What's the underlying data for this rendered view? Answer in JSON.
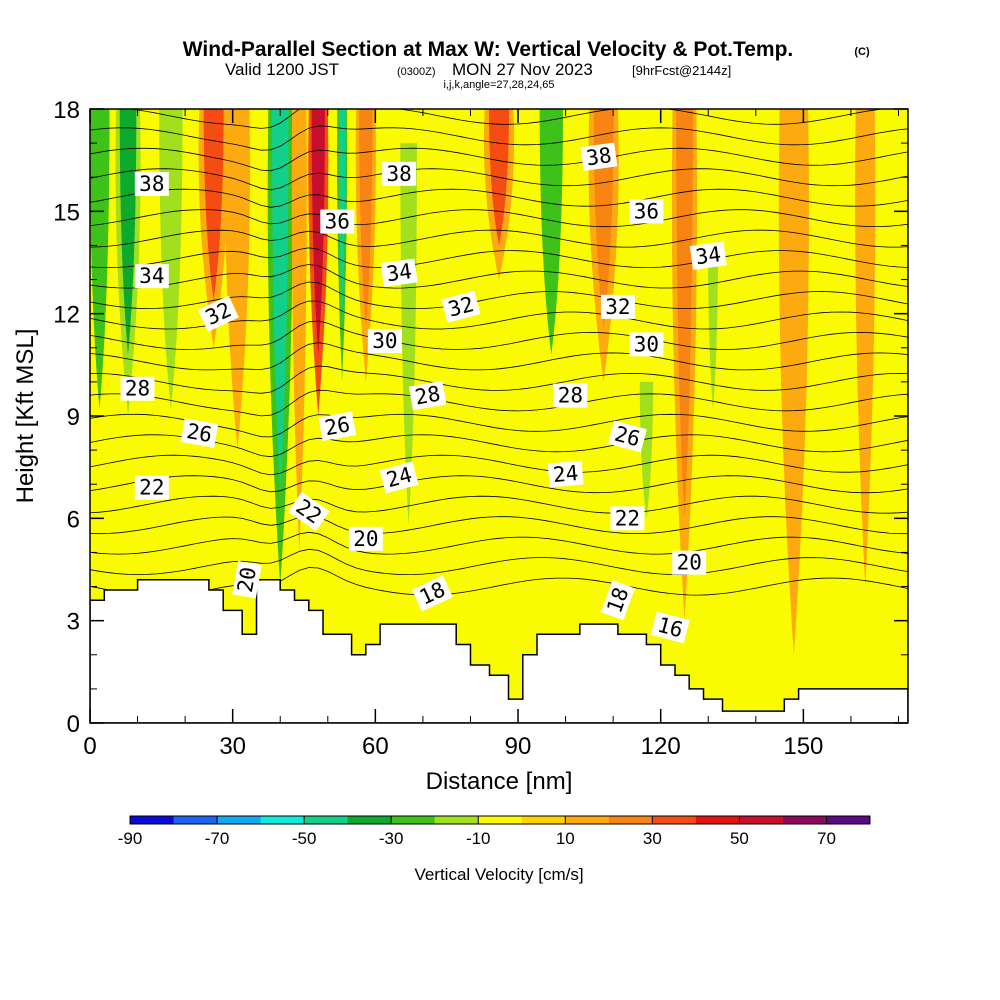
{
  "chart_data": {
    "type": "heatmap",
    "title_main": "Wind-Parallel Section at Max W: Vertical Velocity & Pot.Temp.",
    "title_tag": "(C)",
    "subtitle_a": "Valid 1200 JST",
    "subtitle_b": "(0300Z)",
    "subtitle_c": "MON 27 Nov 2023",
    "subtitle_d": "[9hrFcst@2144z]",
    "subtitle2": "i,j,k,angle=27,28,24,65",
    "xlabel": "Distance [nm]",
    "ylabel": "Height [Kft MSL]",
    "xlim": [
      0,
      172
    ],
    "ylim": [
      0,
      18
    ],
    "x_ticks": [
      0,
      30,
      60,
      90,
      120,
      150
    ],
    "y_ticks": [
      0,
      3,
      6,
      9,
      12,
      15,
      18
    ],
    "colorbar": {
      "title": "Vertical Velocity [cm/s]",
      "levels": [
        -90,
        -80,
        -70,
        -60,
        -50,
        -40,
        -30,
        -20,
        -10,
        0,
        10,
        20,
        30,
        40,
        50,
        60,
        70,
        80
      ],
      "tick_labels": [
        "-90",
        "-70",
        "-50",
        "-30",
        "-10",
        "10",
        "30",
        "50",
        "70"
      ],
      "colors": [
        "#0a0ad6",
        "#1e64f0",
        "#12a8ee",
        "#10ecdc",
        "#12d08a",
        "#0eaa2e",
        "#3ec21a",
        "#a2e01e",
        "#fafa00",
        "#fcd200",
        "#fcaa10",
        "#f88414",
        "#f44c12",
        "#e41212",
        "#c8102e",
        "#8c0a5a",
        "#5a0a82"
      ]
    },
    "vertical_velocity_bands": [
      {
        "x": 2,
        "w": 6,
        "ztop": 18,
        "zbot": 7,
        "v": -30
      },
      {
        "x": 8,
        "w": 5,
        "ztop": 18,
        "zbot": 9,
        "v": -40
      },
      {
        "x": 17,
        "w": 7,
        "ztop": 18,
        "zbot": 7,
        "v": -20
      },
      {
        "x": 26,
        "w": 6,
        "ztop": 18,
        "zbot": 11,
        "v": 30
      },
      {
        "x": 31,
        "w": 5,
        "ztop": 18,
        "zbot": 8,
        "v": 10
      },
      {
        "x": 40,
        "w": 5,
        "ztop": 18,
        "zbot": 4,
        "v": -50
      },
      {
        "x": 44,
        "w": 3,
        "ztop": 18,
        "zbot": 5,
        "v": 10
      },
      {
        "x": 48,
        "w": 4,
        "ztop": 18,
        "zbot": 9,
        "v": 55
      },
      {
        "x": 53,
        "w": 2,
        "ztop": 18,
        "zbot": 10,
        "v": -45
      },
      {
        "x": 58,
        "w": 4,
        "ztop": 18,
        "zbot": 10,
        "v": 20
      },
      {
        "x": 67,
        "w": 5,
        "ztop": 17,
        "zbot": 3,
        "v": -20
      },
      {
        "x": 86,
        "w": 6,
        "ztop": 18,
        "zbot": 13,
        "v": 30
      },
      {
        "x": 97,
        "w": 7,
        "ztop": 18,
        "zbot": 9,
        "v": -30
      },
      {
        "x": 108,
        "w": 6,
        "ztop": 18,
        "zbot": 10,
        "v": 20
      },
      {
        "x": 117,
        "w": 4,
        "ztop": 10,
        "zbot": 5,
        "v": -20
      },
      {
        "x": 125,
        "w": 5,
        "ztop": 18,
        "zbot": 3,
        "v": 20
      },
      {
        "x": 131,
        "w": 3,
        "ztop": 14,
        "zbot": 8,
        "v": -20
      },
      {
        "x": 148,
        "w": 6,
        "ztop": 18,
        "zbot": 2,
        "v": 10
      },
      {
        "x": 163,
        "w": 4,
        "ztop": 18,
        "zbot": 4,
        "v": 10
      }
    ],
    "theta_labels": [
      {
        "text": "38",
        "x": 13,
        "z": 15.8,
        "rot": 0
      },
      {
        "text": "38",
        "x": 65,
        "z": 16.1,
        "rot": 0
      },
      {
        "text": "38",
        "x": 107,
        "z": 16.6,
        "rot": -8
      },
      {
        "text": "36",
        "x": 52,
        "z": 14.7,
        "rot": 0
      },
      {
        "text": "36",
        "x": 117,
        "z": 15.0,
        "rot": 0
      },
      {
        "text": "34",
        "x": 13,
        "z": 13.1,
        "rot": 0
      },
      {
        "text": "34",
        "x": 65,
        "z": 13.2,
        "rot": -8
      },
      {
        "text": "34",
        "x": 130,
        "z": 13.7,
        "rot": -8
      },
      {
        "text": "32",
        "x": 27,
        "z": 12.0,
        "rot": -25
      },
      {
        "text": "32",
        "x": 78,
        "z": 12.2,
        "rot": -15
      },
      {
        "text": "32",
        "x": 111,
        "z": 12.2,
        "rot": 0
      },
      {
        "text": "30",
        "x": 62,
        "z": 11.2,
        "rot": 0
      },
      {
        "text": "30",
        "x": 117,
        "z": 11.1,
        "rot": 0
      },
      {
        "text": "28",
        "x": 10,
        "z": 9.8,
        "rot": 0
      },
      {
        "text": "28",
        "x": 71,
        "z": 9.6,
        "rot": -10
      },
      {
        "text": "28",
        "x": 101,
        "z": 9.6,
        "rot": 0
      },
      {
        "text": "26",
        "x": 23,
        "z": 8.5,
        "rot": 10
      },
      {
        "text": "26",
        "x": 52,
        "z": 8.7,
        "rot": -10
      },
      {
        "text": "26",
        "x": 113,
        "z": 8.4,
        "rot": 15
      },
      {
        "text": "24",
        "x": 65,
        "z": 7.2,
        "rot": -15
      },
      {
        "text": "24",
        "x": 100,
        "z": 7.3,
        "rot": -5
      },
      {
        "text": "22",
        "x": 13,
        "z": 6.9,
        "rot": 0
      },
      {
        "text": "22",
        "x": 46,
        "z": 6.2,
        "rot": 35
      },
      {
        "text": "22",
        "x": 113,
        "z": 6.0,
        "rot": 0
      },
      {
        "text": "20",
        "x": 58,
        "z": 5.4,
        "rot": 0
      },
      {
        "text": "20",
        "x": 126,
        "z": 4.7,
        "rot": 0
      },
      {
        "text": "20",
        "x": 33,
        "z": 4.2,
        "rot": -80
      },
      {
        "text": "18",
        "x": 72,
        "z": 3.8,
        "rot": -25
      },
      {
        "text": "18",
        "x": 111,
        "z": 3.6,
        "rot": -70
      },
      {
        "text": "16",
        "x": 122,
        "z": 2.8,
        "rot": 15
      }
    ],
    "terrain": [
      [
        0,
        3.6
      ],
      [
        3,
        3.6
      ],
      [
        3,
        3.9
      ],
      [
        10,
        3.9
      ],
      [
        10,
        4.2
      ],
      [
        25,
        4.2
      ],
      [
        25,
        3.9
      ],
      [
        28,
        3.9
      ],
      [
        28,
        3.3
      ],
      [
        32,
        3.3
      ],
      [
        32,
        2.6
      ],
      [
        35,
        2.6
      ],
      [
        35,
        4.2
      ],
      [
        40,
        4.2
      ],
      [
        40,
        3.9
      ],
      [
        43,
        3.9
      ],
      [
        43,
        3.6
      ],
      [
        46,
        3.6
      ],
      [
        46,
        3.3
      ],
      [
        49,
        3.3
      ],
      [
        49,
        2.6
      ],
      [
        55,
        2.6
      ],
      [
        55,
        2.0
      ],
      [
        58,
        2.0
      ],
      [
        58,
        2.3
      ],
      [
        61,
        2.3
      ],
      [
        61,
        2.9
      ],
      [
        77,
        2.9
      ],
      [
        77,
        2.3
      ],
      [
        80,
        2.3
      ],
      [
        80,
        1.7
      ],
      [
        84,
        1.7
      ],
      [
        84,
        1.4
      ],
      [
        88,
        1.4
      ],
      [
        88,
        0.7
      ],
      [
        91,
        0.7
      ],
      [
        91,
        2.0
      ],
      [
        94,
        2.0
      ],
      [
        94,
        2.6
      ],
      [
        103,
        2.6
      ],
      [
        103,
        2.9
      ],
      [
        111,
        2.9
      ],
      [
        111,
        2.6
      ],
      [
        117,
        2.6
      ],
      [
        117,
        2.3
      ],
      [
        120,
        2.3
      ],
      [
        120,
        1.7
      ],
      [
        123,
        1.7
      ],
      [
        123,
        1.4
      ],
      [
        126,
        1.4
      ],
      [
        126,
        1.0
      ],
      [
        129,
        1.0
      ],
      [
        129,
        0.7
      ],
      [
        133,
        0.7
      ],
      [
        133,
        0.35
      ],
      [
        146,
        0.35
      ],
      [
        146,
        0.7
      ],
      [
        149,
        0.7
      ],
      [
        149,
        1.0
      ],
      [
        172,
        1.0
      ]
    ]
  }
}
